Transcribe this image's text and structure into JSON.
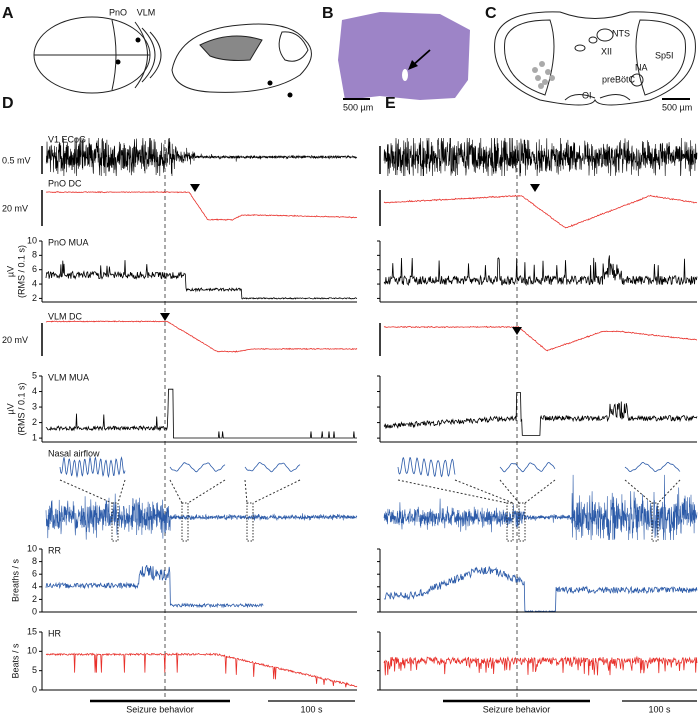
{
  "figure": {
    "panel_labels": [
      "A",
      "B",
      "C",
      "D",
      "E"
    ],
    "a": {
      "labels": [
        "PnO",
        "VLM"
      ]
    },
    "b": {
      "scale": "500 µm"
    },
    "c": {
      "regions": [
        "NTS",
        "XII",
        "Sp5I",
        "NA",
        "preBötC",
        "OI"
      ],
      "scale": "500 µm"
    },
    "traces": [
      {
        "name": "V1 ECoG",
        "scale": "0.5 mV",
        "color": "#000000"
      },
      {
        "name": "PnO DC",
        "scale": "20 mV",
        "color": "#e8302a"
      },
      {
        "name": "PnO MUA",
        "unit": "µV",
        "ylabel": "(RMS / 0.1 s)",
        "ylim": [
          1.5,
          10
        ],
        "yticks": [
          2,
          4,
          6,
          8,
          10
        ],
        "color": "#000000"
      },
      {
        "name": "VLM DC",
        "scale": "20 mV",
        "color": "#e8302a"
      },
      {
        "name": "VLM MUA",
        "unit": "µV",
        "ylabel": "(RMS / 0.1 s)",
        "ylim": [
          0.75,
          5
        ],
        "yticks": [
          1,
          2,
          3,
          4,
          5
        ],
        "color": "#000000"
      },
      {
        "name": "Nasal airflow",
        "color": "#2b5aa8"
      },
      {
        "name": "RR",
        "ylabel": "Breaths / s",
        "ylim": [
          0,
          10
        ],
        "yticks": [
          0,
          2,
          4,
          6,
          8,
          10
        ],
        "color": "#2b5aa8"
      },
      {
        "name": "HR",
        "ylabel": "Beats / s",
        "ylim": [
          0,
          15
        ],
        "yticks": [
          0,
          5,
          10,
          15
        ],
        "color": "#e8302a"
      }
    ],
    "seizure_label": "Seizure behavior",
    "time_scale": "100 s"
  }
}
